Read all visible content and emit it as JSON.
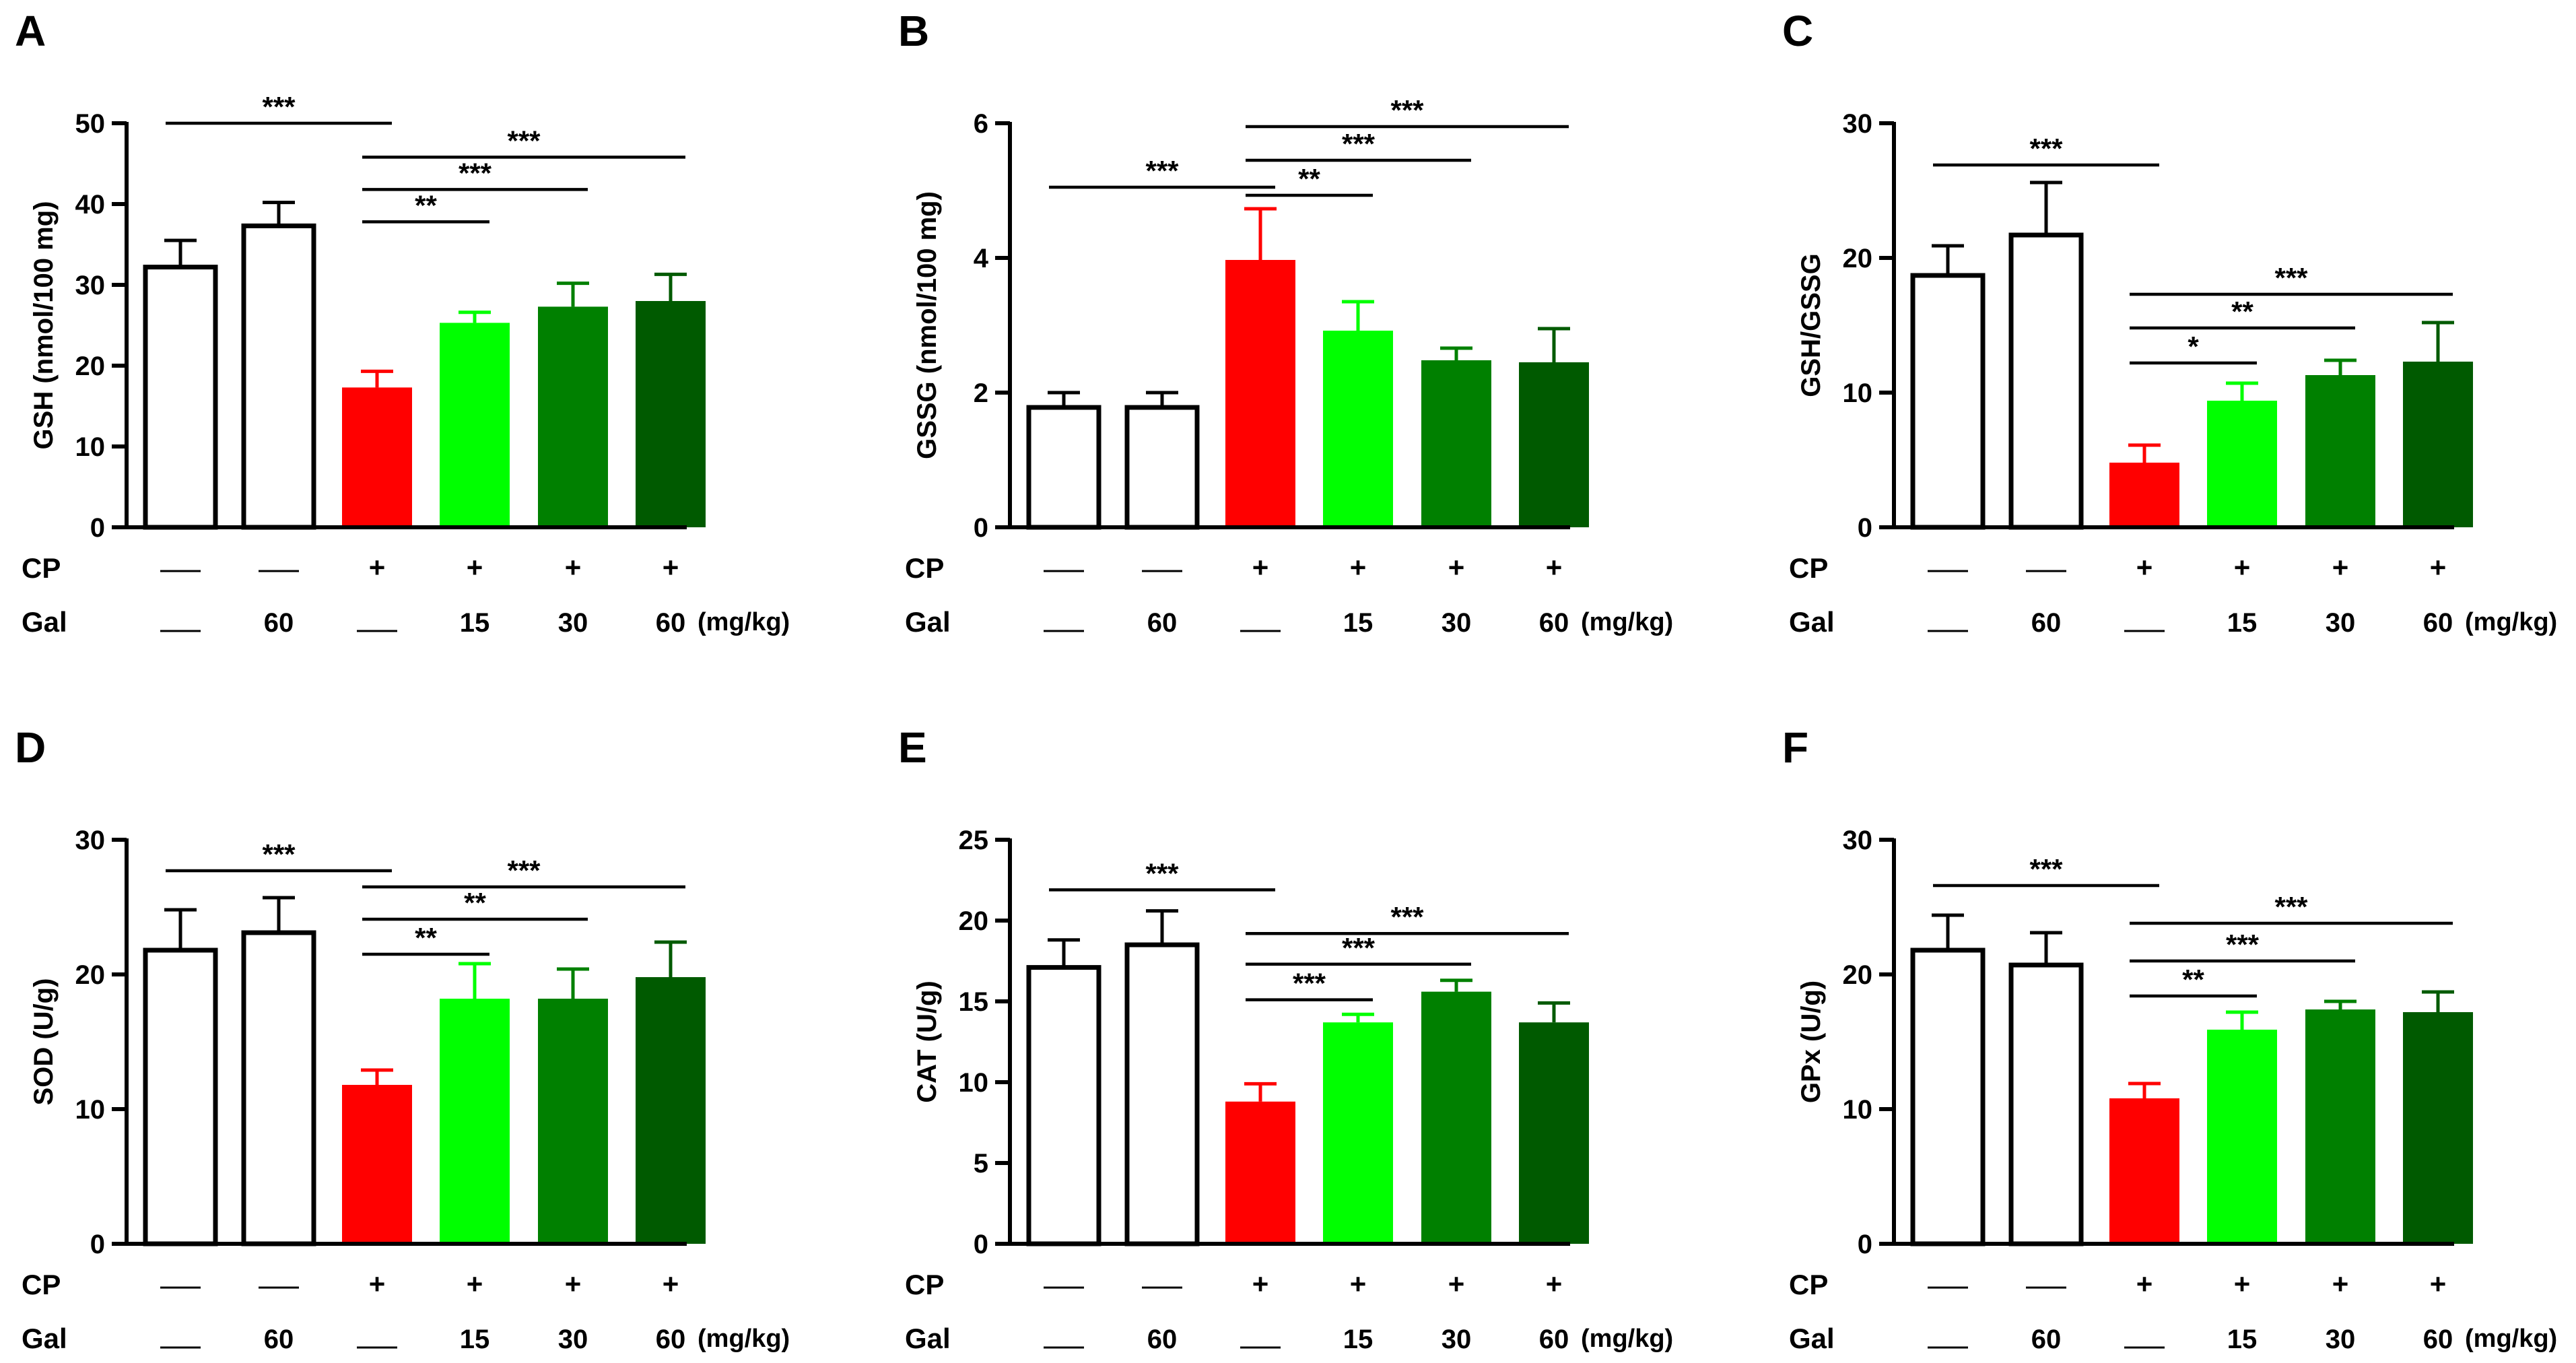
{
  "colors": {
    "control": "#ffffff",
    "cp": "#ff0000",
    "gal15": "#00ff00",
    "gal30": "#008000",
    "gal60": "#005a00",
    "stroke": "#000000"
  },
  "row_labels": {
    "cp": "CP",
    "gal": "Gal"
  },
  "cp_values": [
    "—",
    "—",
    "+",
    "+",
    "+",
    "+"
  ],
  "gal_values": [
    "—",
    "60",
    "—",
    "15",
    "30",
    "60"
  ],
  "dose_unit": "(mg/kg)",
  "chart_data": [
    {
      "panel": "A",
      "type": "bar",
      "ylabel": "GSH (nmol/100 mg)",
      "ylim": [
        0,
        50
      ],
      "yticks": [
        0,
        10,
        20,
        30,
        40,
        50
      ],
      "ytick_labels": [
        "0",
        "10",
        "20",
        "30",
        "40",
        "50"
      ],
      "values": [
        32.2,
        37.3,
        17.3,
        25.3,
        27.3,
        28.0
      ],
      "errors": [
        3.3,
        2.9,
        2.0,
        1.3,
        2.9,
        3.3
      ],
      "comparisons": [
        {
          "from": 0,
          "to": 2,
          "label": "***",
          "level": 50
        },
        {
          "from": 2,
          "to": 5,
          "label": "***",
          "level": 45.8
        },
        {
          "from": 2,
          "to": 4,
          "label": "***",
          "level": 41.8
        },
        {
          "from": 2,
          "to": 3,
          "label": "**",
          "level": 37.8
        }
      ]
    },
    {
      "panel": "B",
      "type": "bar",
      "ylabel": "GSSG (nmol/100 mg)",
      "ylim": [
        0,
        6
      ],
      "yticks": [
        0,
        2,
        4,
        6
      ],
      "ytick_labels": [
        "0",
        "2",
        "4",
        "6"
      ],
      "values": [
        1.78,
        1.78,
        3.97,
        2.92,
        2.48,
        2.45
      ],
      "errors": [
        0.22,
        0.22,
        0.76,
        0.43,
        0.18,
        0.5
      ],
      "comparisons": [
        {
          "from": 0,
          "to": 2,
          "label": "***",
          "level": 5.05
        },
        {
          "from": 2,
          "to": 5,
          "label": "***",
          "level": 5.95
        },
        {
          "from": 2,
          "to": 4,
          "label": "***",
          "level": 5.45
        },
        {
          "from": 2,
          "to": 3,
          "label": "**",
          "level": 4.93
        }
      ]
    },
    {
      "panel": "C",
      "type": "bar",
      "ylabel": "GSH/GSSG",
      "ylim": [
        0,
        30
      ],
      "yticks": [
        0,
        10,
        20,
        30
      ],
      "ytick_labels": [
        "0",
        "10",
        "20",
        "30"
      ],
      "values": [
        18.7,
        21.7,
        4.8,
        9.4,
        11.3,
        12.3
      ],
      "errors": [
        2.2,
        3.9,
        1.3,
        1.3,
        1.1,
        2.9
      ],
      "comparisons": [
        {
          "from": 0,
          "to": 2,
          "label": "***",
          "level": 26.9
        },
        {
          "from": 2,
          "to": 5,
          "label": "***",
          "level": 17.3
        },
        {
          "from": 2,
          "to": 4,
          "label": "**",
          "level": 14.8
        },
        {
          "from": 2,
          "to": 3,
          "label": "*",
          "level": 12.2
        }
      ]
    },
    {
      "panel": "D",
      "type": "bar",
      "ylabel": "SOD (U/g)",
      "ylim": [
        0,
        30
      ],
      "yticks": [
        0,
        10,
        20,
        30
      ],
      "ytick_labels": [
        "0",
        "10",
        "20",
        "30"
      ],
      "values": [
        21.8,
        23.1,
        11.8,
        18.2,
        18.2,
        19.8
      ],
      "errors": [
        3.0,
        2.6,
        1.1,
        2.6,
        2.2,
        2.6
      ],
      "comparisons": [
        {
          "from": 0,
          "to": 2,
          "label": "***",
          "level": 27.7
        },
        {
          "from": 2,
          "to": 5,
          "label": "***",
          "level": 26.5
        },
        {
          "from": 2,
          "to": 4,
          "label": "**",
          "level": 24.1
        },
        {
          "from": 2,
          "to": 3,
          "label": "**",
          "level": 21.5
        }
      ]
    },
    {
      "panel": "E",
      "type": "bar",
      "ylabel": "CAT (U/g)",
      "ylim": [
        0,
        25
      ],
      "yticks": [
        0,
        5,
        10,
        15,
        20,
        25
      ],
      "ytick_labels": [
        "0",
        "5",
        "10",
        "15",
        "20",
        "25"
      ],
      "values": [
        17.1,
        18.5,
        8.8,
        13.7,
        15.6,
        13.7
      ],
      "errors": [
        1.7,
        2.1,
        1.1,
        0.5,
        0.7,
        1.2
      ],
      "comparisons": [
        {
          "from": 0,
          "to": 2,
          "label": "***",
          "level": 21.9
        },
        {
          "from": 2,
          "to": 5,
          "label": "***",
          "level": 19.2
        },
        {
          "from": 2,
          "to": 4,
          "label": "***",
          "level": 17.3
        },
        {
          "from": 2,
          "to": 3,
          "label": "***",
          "level": 15.1
        }
      ]
    },
    {
      "panel": "F",
      "type": "bar",
      "ylabel": "GPx (U/g)",
      "ylim": [
        0,
        30
      ],
      "yticks": [
        0,
        10,
        20,
        30
      ],
      "ytick_labels": [
        "0",
        "10",
        "20",
        "30"
      ],
      "values": [
        21.8,
        20.7,
        10.8,
        15.9,
        17.4,
        17.2
      ],
      "errors": [
        2.6,
        2.4,
        1.1,
        1.3,
        0.6,
        1.5
      ],
      "comparisons": [
        {
          "from": 0,
          "to": 2,
          "label": "***",
          "level": 26.6
        },
        {
          "from": 2,
          "to": 5,
          "label": "***",
          "level": 23.8
        },
        {
          "from": 2,
          "to": 4,
          "label": "***",
          "level": 21.0
        },
        {
          "from": 2,
          "to": 3,
          "label": "**",
          "level": 18.4
        }
      ]
    }
  ]
}
